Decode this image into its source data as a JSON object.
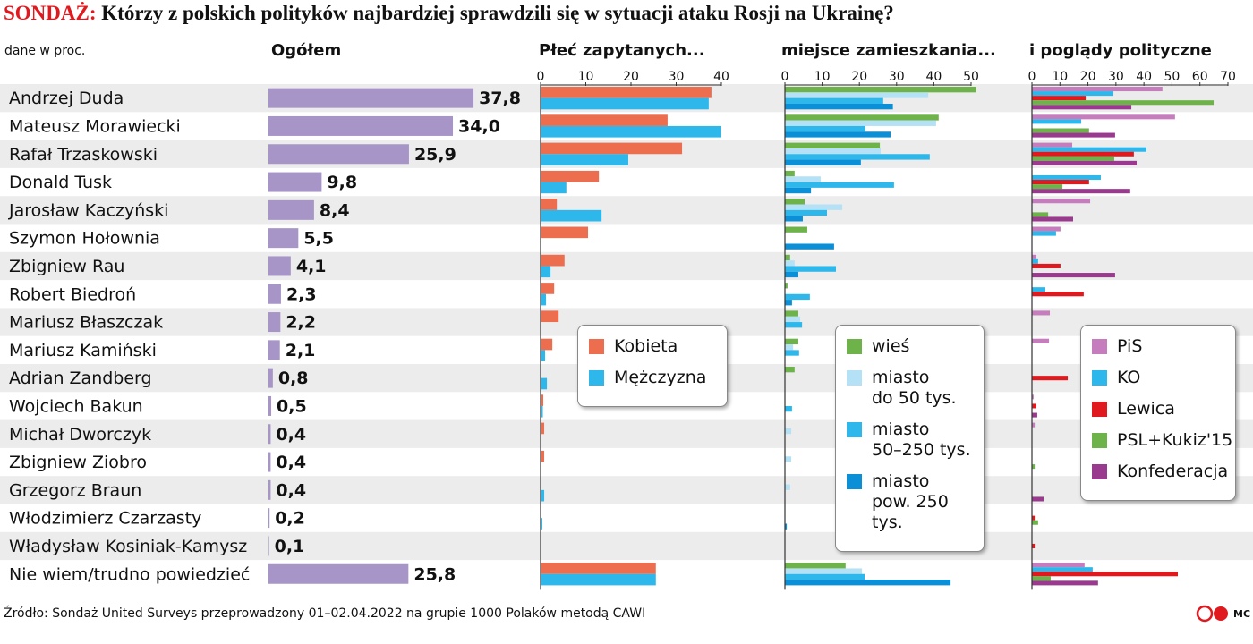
{
  "header": {
    "prefix": "SONDAŻ:",
    "title": "Którzy z polskich polityków najbardziej sprawdzili się w sytuacji ataku Rosji na Ukrainę?"
  },
  "note": "dane w proc.",
  "source": "Źródło: Sondaż United Surveys przeprowadzony 01–02.04.2022  na grupie 1000 Polaków metodą CAWI",
  "logo": "MC",
  "chart_data": [
    {
      "type": "bar",
      "orientation": "horizontal",
      "title": "Ogółem",
      "color": "#a795c8",
      "categories": [
        "Andrzej Duda",
        "Mateusz Morawiecki",
        "Rafał Trzaskowski",
        "Donald Tusk",
        "Jarosław Kaczyński",
        "Szymon Hołownia",
        "Zbigniew Rau",
        "Robert Biedroń",
        "Mariusz Błaszczak",
        "Mariusz Kamiński",
        "Adrian Zandberg",
        "Wojciech Bakun",
        "Michał Dworczyk",
        "Zbigniew Ziobro",
        "Grzegorz Braun",
        "Włodzimierz Czarzasty",
        "Władysław Kosiniak-Kamysz",
        "Nie wiem/trudno powiedzieć"
      ],
      "values": [
        37.8,
        34.0,
        25.9,
        9.8,
        8.4,
        5.5,
        4.1,
        2.3,
        2.2,
        2.1,
        0.8,
        0.5,
        0.4,
        0.4,
        0.4,
        0.2,
        0.1,
        25.8
      ],
      "value_labels": [
        "37,8",
        "34,0",
        "25,9",
        "9,8",
        "8,4",
        "5,5",
        "4,1",
        "2,3",
        "2,2",
        "2,1",
        "0,8",
        "0,5",
        "0,4",
        "0,4",
        "0,4",
        "0,2",
        "0,1",
        "25,8"
      ]
    },
    {
      "type": "bar",
      "orientation": "horizontal",
      "title": "Płeć zapytanych...",
      "xlim": [
        0,
        40
      ],
      "xticks": [
        0,
        10,
        20,
        30,
        40
      ],
      "series": [
        {
          "name": "Kobieta",
          "color": "#ec6e4f",
          "values": [
            37.8,
            28.1,
            31.3,
            12.9,
            3.6,
            10.5,
            5.3,
            3.0,
            4.0,
            2.6,
            0,
            0.6,
            0.8,
            0.8,
            0,
            0,
            0.1,
            25.5
          ]
        },
        {
          "name": "Mężczyzna",
          "color": "#2db7ea",
          "values": [
            37.2,
            40,
            19.4,
            5.7,
            13.5,
            0,
            2.2,
            1.2,
            0,
            1.0,
            1.4,
            0.5,
            0,
            0,
            0.8,
            0.4,
            0,
            25.5
          ]
        }
      ]
    },
    {
      "type": "bar",
      "orientation": "horizontal",
      "title": "miejsce zamieszkania...",
      "xlim": [
        0,
        50
      ],
      "xticks": [
        0,
        10,
        20,
        30,
        40,
        50
      ],
      "series": [
        {
          "name": "wieś",
          "color": "#6db34a",
          "values": [
            51.4,
            41.3,
            25.5,
            2.6,
            5.3,
            6.0,
            1.4,
            0.7,
            3.6,
            3.6,
            2.6,
            0,
            0,
            0,
            0,
            0,
            0,
            16.3
          ]
        },
        {
          "name": "miasto\ndo 50 tys.",
          "color": "#b5e1f6",
          "values": [
            38.5,
            40.6,
            25.7,
            9.6,
            15.4,
            0,
            2.6,
            0,
            4.1,
            2.2,
            0,
            0,
            1.7,
            1.7,
            1.4,
            0,
            0,
            20.7
          ]
        },
        {
          "name": "miasto\n50–250 tys.",
          "color": "#2db7ea",
          "values": [
            26.4,
            21.6,
            38.9,
            29.3,
            11.3,
            0,
            13.7,
            6.7,
            4.6,
            3.8,
            0,
            1.9,
            0,
            0,
            0,
            0,
            0,
            21.4
          ]
        },
        {
          "name": "miasto\npow. 250 tys.",
          "color": "#0b8fd6",
          "values": [
            29.0,
            28.4,
            20.4,
            7.0,
            4.8,
            13.2,
            3.6,
            1.9,
            0,
            0,
            0,
            0,
            0,
            0,
            0,
            0.5,
            0,
            44.5
          ]
        }
      ]
    },
    {
      "type": "bar",
      "orientation": "horizontal",
      "title": "i poglądy polityczne",
      "xlim": [
        0,
        70
      ],
      "xticks": [
        0,
        10,
        20,
        30,
        40,
        50,
        60,
        70
      ],
      "series": [
        {
          "name": "PiS",
          "color": "#c67dbd",
          "values": [
            46.6,
            51.1,
            14.4,
            0,
            20.8,
            10.2,
            1.6,
            0,
            6.4,
            6.1,
            0,
            0.6,
            1.0,
            0,
            0,
            0,
            0,
            18.8
          ]
        },
        {
          "name": "KO",
          "color": "#2db7ea",
          "values": [
            29.1,
            17.6,
            40.9,
            24.6,
            0,
            8.6,
            2.2,
            4.8,
            0,
            0,
            0,
            0,
            0,
            0,
            0,
            0,
            0,
            21.7
          ]
        },
        {
          "name": "Lewica",
          "color": "#e0191f",
          "values": [
            19.2,
            0,
            36.4,
            20.4,
            0,
            0,
            10.2,
            18.5,
            0,
            0,
            12.8,
            1.6,
            0,
            0,
            0,
            1.0,
            1.0,
            52.1
          ]
        },
        {
          "name": "PSL+Kukiz'15",
          "color": "#6db34a",
          "values": [
            64.9,
            20.4,
            29.4,
            10.9,
            5.8,
            0,
            0,
            0,
            0,
            0,
            0,
            0,
            0,
            1.0,
            0,
            2.2,
            0,
            6.7
          ]
        },
        {
          "name": "Konfederacja",
          "color": "#9a3a8e",
          "values": [
            35.5,
            29.7,
            37.4,
            35.1,
            14.7,
            0,
            29.7,
            0,
            0,
            0,
            0,
            1.9,
            0,
            0,
            4.2,
            0,
            0,
            23.6
          ]
        }
      ]
    }
  ]
}
